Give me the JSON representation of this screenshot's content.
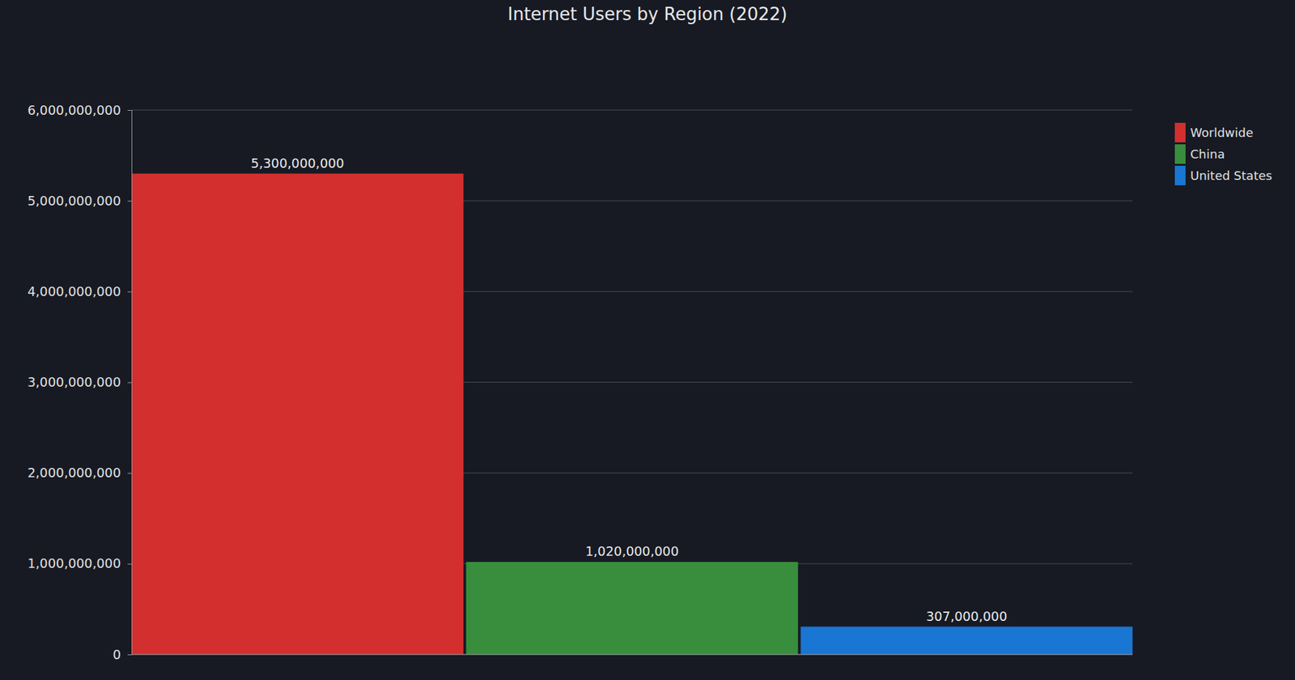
{
  "chart_data": {
    "type": "bar",
    "title": "Internet Users by Region (2022)",
    "categories": [
      "Worldwide",
      "China",
      "United States"
    ],
    "values": [
      5300000000,
      1020000000,
      307000000
    ],
    "value_labels": [
      "5,300,000,000",
      "1,020,000,000",
      "307,000,000"
    ],
    "colors": [
      "#d32f2f",
      "#388e3c",
      "#1976d2"
    ],
    "ylim": [
      0,
      6000000000
    ],
    "yticks": [
      0,
      {
        "value": 1000000000,
        "label": "1,000,000,000"
      },
      {
        "value": 2000000000,
        "label": "2,000,000,000"
      },
      {
        "value": 3000000000,
        "label": "3,000,000,000"
      },
      {
        "value": 4000000000,
        "label": "4,000,000,000"
      },
      {
        "value": 5000000000,
        "label": "5,000,000,000"
      },
      {
        "value": 6000000000,
        "label": "6,000,000,000"
      }
    ],
    "grid": true,
    "data_labels": true,
    "legend": "right",
    "tick_labels": "y"
  }
}
